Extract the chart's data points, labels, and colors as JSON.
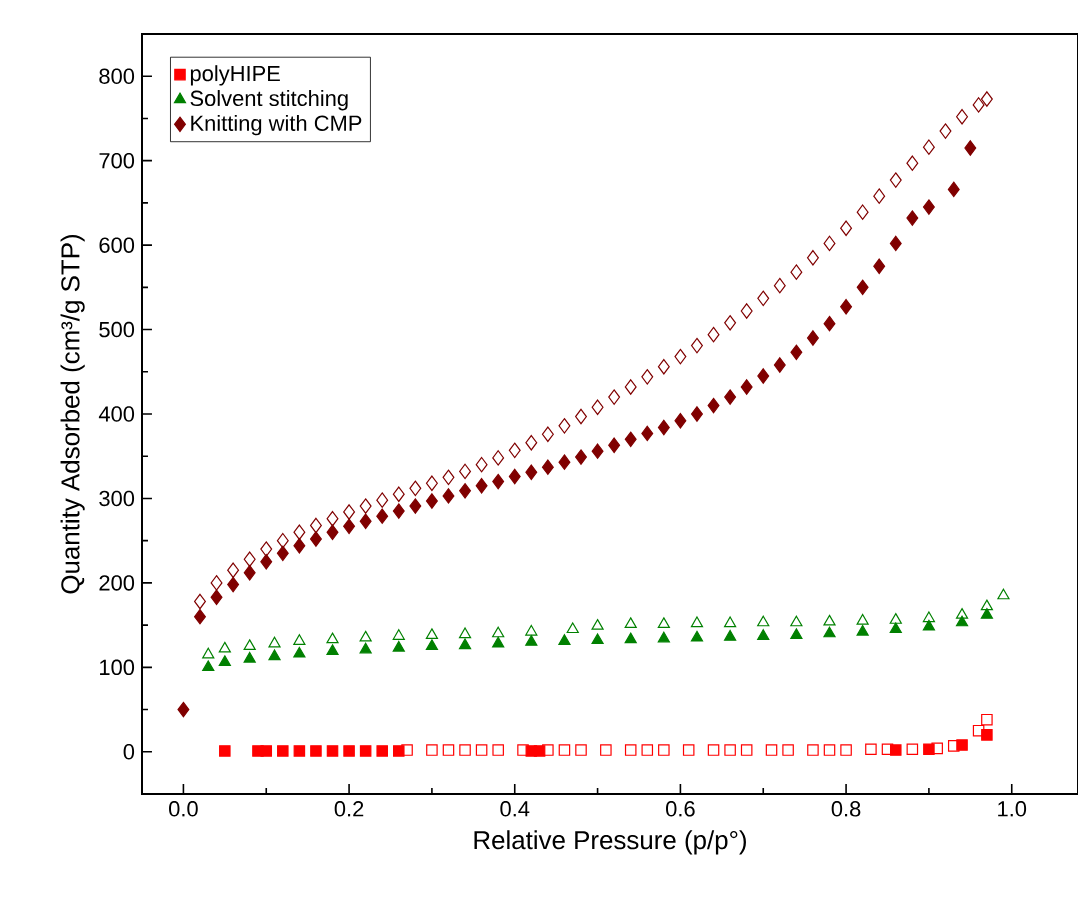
{
  "chart_data": {
    "type": "scatter",
    "xlabel": "Relative Pressure (p/p°)",
    "ylabel": "Quantity Adsorbed (cm³/g STP)",
    "xlim": [
      -0.05,
      1.08
    ],
    "ylim": [
      -50,
      850
    ],
    "xticks": [
      {
        "value": 0,
        "label": "0.0"
      },
      0.2,
      0.4,
      0.6,
      0.8,
      {
        "value": 1,
        "label": "1.0"
      }
    ],
    "yticks": [
      0,
      100,
      200,
      300,
      400,
      500,
      600,
      700,
      800
    ],
    "grid": false,
    "legend": "top left",
    "series": [
      {
        "name": "polyHIPE",
        "color": "#ff0000",
        "marker": "square",
        "x": [
          0.05,
          0.09,
          0.1,
          0.12,
          0.14,
          0.16,
          0.18,
          0.2,
          0.22,
          0.24,
          0.26,
          0.42,
          0.43,
          0.86,
          0.9,
          0.94,
          0.97
        ],
        "values": [
          1,
          1,
          1,
          1,
          1,
          1,
          1,
          1,
          1,
          1,
          1,
          1,
          1,
          2,
          3,
          8,
          20
        ]
      },
      {
        "color": "#ff0000",
        "marker": "square",
        "x": [
          0.27,
          0.3,
          0.32,
          0.34,
          0.36,
          0.38,
          0.41,
          0.44,
          0.46,
          0.48,
          0.51,
          0.54,
          0.56,
          0.58,
          0.61,
          0.64,
          0.66,
          0.68,
          0.71,
          0.73,
          0.76,
          0.78,
          0.8,
          0.83,
          0.85,
          0.88,
          0.91,
          0.93,
          0.96,
          0.97
        ],
        "values": [
          2,
          2,
          2,
          2,
          2,
          2,
          2,
          2,
          2,
          2,
          2,
          2,
          2,
          2,
          2,
          2,
          2,
          2,
          2,
          2,
          2,
          2,
          2,
          3,
          3,
          3,
          4,
          7,
          25,
          38
        ]
      },
      {
        "name": "Solvent stitching",
        "color": "#008000",
        "marker": "triangle",
        "x": [
          0.03,
          0.05,
          0.08,
          0.11,
          0.14,
          0.18,
          0.22,
          0.26,
          0.3,
          0.34,
          0.38,
          0.42,
          0.46,
          0.5,
          0.54,
          0.58,
          0.62,
          0.66,
          0.7,
          0.74,
          0.78,
          0.82,
          0.86,
          0.9,
          0.94,
          0.97
        ],
        "values": [
          100,
          106,
          110,
          113,
          116,
          119,
          121,
          123,
          125,
          126,
          128,
          130,
          131,
          132,
          133,
          134,
          135,
          136,
          137,
          138,
          140,
          142,
          145,
          148,
          153,
          162
        ]
      },
      {
        "color": "#008000",
        "marker": "triangle",
        "x": [
          0.03,
          0.05,
          0.08,
          0.11,
          0.14,
          0.18,
          0.22,
          0.26,
          0.3,
          0.34,
          0.38,
          0.42,
          0.47,
          0.5,
          0.54,
          0.58,
          0.62,
          0.66,
          0.7,
          0.74,
          0.78,
          0.82,
          0.86,
          0.9,
          0.94,
          0.97,
          0.99
        ],
        "values": [
          115,
          122,
          125,
          128,
          131,
          133,
          135,
          137,
          138,
          139,
          140,
          142,
          145,
          149,
          151,
          151,
          152,
          152,
          153,
          153,
          154,
          155,
          156,
          158,
          162,
          172,
          185
        ]
      },
      {
        "name": "Knitting with CMP",
        "color": "#800000",
        "marker": "diamond",
        "x": [
          0,
          0.02,
          0.04,
          0.06,
          0.08,
          0.1,
          0.12,
          0.14,
          0.16,
          0.18,
          0.2,
          0.22,
          0.24,
          0.26,
          0.28,
          0.3,
          0.32,
          0.34,
          0.36,
          0.38,
          0.4,
          0.42,
          0.44,
          0.46,
          0.48,
          0.5,
          0.52,
          0.54,
          0.56,
          0.58,
          0.6,
          0.62,
          0.64,
          0.66,
          0.68,
          0.7,
          0.72,
          0.74,
          0.76,
          0.78,
          0.8,
          0.82,
          0.84,
          0.86,
          0.88,
          0.9,
          0.93,
          0.95
        ],
        "values": [
          50,
          160,
          183,
          198,
          212,
          225,
          235,
          244,
          252,
          260,
          267,
          273,
          279,
          285,
          291,
          297,
          303,
          309,
          315,
          320,
          326,
          331,
          337,
          343,
          349,
          356,
          363,
          370,
          377,
          384,
          392,
          400,
          410,
          420,
          432,
          445,
          458,
          473,
          490,
          507,
          527,
          550,
          575,
          602,
          632,
          645,
          666,
          715
        ]
      },
      {
        "color": "#800000",
        "marker": "diamond",
        "x": [
          0.02,
          0.04,
          0.06,
          0.08,
          0.1,
          0.12,
          0.14,
          0.16,
          0.18,
          0.2,
          0.22,
          0.24,
          0.26,
          0.28,
          0.3,
          0.32,
          0.34,
          0.36,
          0.38,
          0.4,
          0.42,
          0.44,
          0.46,
          0.48,
          0.5,
          0.52,
          0.54,
          0.56,
          0.58,
          0.6,
          0.62,
          0.64,
          0.66,
          0.68,
          0.7,
          0.72,
          0.74,
          0.76,
          0.78,
          0.8,
          0.82,
          0.84,
          0.86,
          0.88,
          0.9,
          0.92,
          0.94,
          0.96,
          0.97
        ],
        "values": [
          178,
          200,
          215,
          228,
          240,
          250,
          260,
          268,
          276,
          284,
          291,
          298,
          305,
          312,
          318,
          325,
          332,
          340,
          348,
          357,
          366,
          376,
          386,
          397,
          408,
          420,
          432,
          444,
          456,
          468,
          481,
          494,
          508,
          522,
          537,
          552,
          568,
          585,
          602,
          620,
          639,
          658,
          677,
          697,
          716,
          735,
          752,
          766,
          773
        ]
      }
    ]
  }
}
